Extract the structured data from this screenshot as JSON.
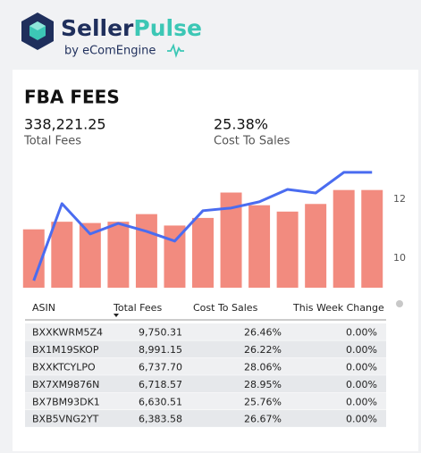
{
  "header": {
    "brand_primary": "Seller",
    "brand_accent": "Pulse",
    "tagline": "by eComEngine"
  },
  "card": {
    "title": "FBA FEES",
    "kpis": [
      {
        "value": "338,221.25",
        "label": "Total Fees"
      },
      {
        "value": "25.38%",
        "label": "Cost To Sales"
      }
    ]
  },
  "chart_data": {
    "type": "bar_line",
    "categories": [
      null,
      null,
      null,
      null,
      null,
      null,
      null,
      null,
      null,
      null,
      null,
      null,
      null
    ],
    "series": [
      {
        "type": "bar",
        "color": "#f28b7f",
        "values": [
          46,
          52,
          51,
          52,
          58,
          49,
          55,
          75,
          65,
          60,
          66,
          77,
          77
        ]
      },
      {
        "type": "line",
        "color": "#4a6cf0",
        "axis": "y2",
        "values": [
          9.24,
          11.85,
          10.82,
          11.18,
          10.91,
          10.58,
          11.61,
          11.7,
          11.91,
          12.33,
          12.21,
          12.91,
          12.91
        ]
      }
    ],
    "ylim": [
      0,
      100
    ],
    "y2lim": [
      9,
      13.3
    ],
    "y2ticks": [
      10,
      12
    ]
  },
  "table": {
    "columns": [
      "ASIN",
      "Total Fees",
      "Cost To Sales",
      "This Week Change"
    ],
    "rows": [
      [
        "BXXKWRM5Z4",
        "9,750.31",
        "26.46%",
        "0.00%"
      ],
      [
        "BX1M19SKOP",
        "8,991.15",
        "26.22%",
        "0.00%"
      ],
      [
        "BXXKTCYLPO",
        "6,737.70",
        "28.06%",
        "0.00%"
      ],
      [
        "BX7XM9876N",
        "6,718.57",
        "28.95%",
        "0.00%"
      ],
      [
        "BX7BM93DK1",
        "6,630.51",
        "25.76%",
        "0.00%"
      ],
      [
        "BXB5VNG2YT",
        "6,383.58",
        "26.67%",
        "0.00%"
      ]
    ]
  }
}
